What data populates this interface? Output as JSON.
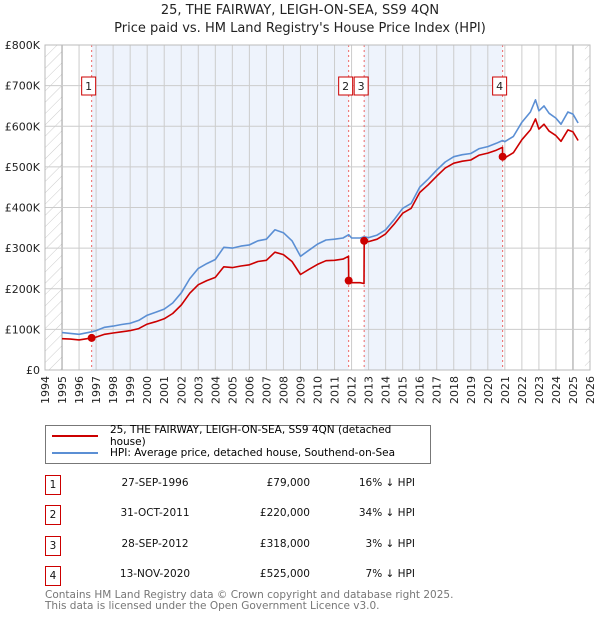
{
  "chart_data": {
    "type": "line",
    "title": "25, THE FAIRWAY, LEIGH-ON-SEA, SS9 4QN",
    "subtitle": "Price paid vs. HM Land Registry's House Price Index (HPI)",
    "xlim": [
      1994,
      2026
    ],
    "ylim": [
      0,
      800000
    ],
    "y_ticks": [
      {
        "value": 0,
        "label": "£0"
      },
      {
        "value": 100000,
        "label": "£100K"
      },
      {
        "value": 200000,
        "label": "£200K"
      },
      {
        "value": 300000,
        "label": "£300K"
      },
      {
        "value": 400000,
        "label": "£400K"
      },
      {
        "value": 500000,
        "label": "£500K"
      },
      {
        "value": 600000,
        "label": "£600K"
      },
      {
        "value": 700000,
        "label": "£700K"
      },
      {
        "value": 800000,
        "label": "£800K"
      }
    ],
    "x_ticks": [
      "1994",
      "1995",
      "1996",
      "1997",
      "1998",
      "1999",
      "2000",
      "2001",
      "2002",
      "2003",
      "2004",
      "2005",
      "2006",
      "2007",
      "2008",
      "2009",
      "2010",
      "2011",
      "2012",
      "2013",
      "2014",
      "2015",
      "2016",
      "2017",
      "2018",
      "2019",
      "2020",
      "2021",
      "2022",
      "2023",
      "2024",
      "2025",
      "2026"
    ],
    "grid": true,
    "colors": {
      "price": "#cc0000",
      "hpi": "#5b8fd4",
      "shade": "#eef3fc",
      "grid": "#cccccc"
    },
    "series": [
      {
        "name": "25, THE FAIRWAY, LEIGH-ON-SEA, SS9 4QN (detached house)",
        "color": "#cc0000",
        "x": [
          1995.0,
          1995.5,
          1996.0,
          1996.74,
          1997.0,
          1997.5,
          1998.0,
          1998.5,
          1999.0,
          1999.5,
          2000.0,
          2000.5,
          2001.0,
          2001.5,
          2002.0,
          2002.5,
          2003.0,
          2003.5,
          2004.0,
          2004.5,
          2005.0,
          2005.5,
          2006.0,
          2006.5,
          2007.0,
          2007.5,
          2008.0,
          2008.5,
          2009.0,
          2009.5,
          2010.0,
          2010.5,
          2011.0,
          2011.5,
          2011.82,
          2011.83,
          2012.0,
          2012.5,
          2012.73,
          2012.74,
          2013.0,
          2013.5,
          2014.0,
          2014.5,
          2015.0,
          2015.5,
          2016.0,
          2016.5,
          2017.0,
          2017.5,
          2018.0,
          2018.5,
          2019.0,
          2019.5,
          2020.0,
          2020.5,
          2020.86,
          2020.87,
          2021.0,
          2021.5,
          2022.0,
          2022.5,
          2022.8,
          2023.0,
          2023.3,
          2023.6,
          2024.0,
          2024.3,
          2024.7,
          2025.0,
          2025.3
        ],
        "values": [
          77,
          76,
          74,
          79,
          81,
          88,
          91,
          94,
          97,
          102,
          113,
          119,
          126,
          139,
          160,
          189,
          210,
          220,
          228,
          254,
          252,
          256,
          259,
          267,
          270,
          290,
          284,
          267,
          235,
          248,
          260,
          269,
          270,
          273,
          280,
          220,
          215,
          215,
          213,
          318,
          316,
          322,
          335,
          359,
          386,
          398,
          437,
          456,
          477,
          497,
          509,
          514,
          517,
          529,
          534,
          541,
          548,
          525,
          522,
          535,
          567,
          591,
          618,
          593,
          605,
          588,
          577,
          563,
          591,
          586,
          565
        ],
        "unit": "thousand GBP"
      },
      {
        "name": "HPI: Average price, detached house, Southend-on-Sea",
        "color": "#5b8fd4",
        "x": [
          1995.0,
          1995.5,
          1996.0,
          1996.74,
          1997.0,
          1997.5,
          1998.0,
          1998.5,
          1999.0,
          1999.5,
          2000.0,
          2000.5,
          2001.0,
          2001.5,
          2002.0,
          2002.5,
          2003.0,
          2003.5,
          2004.0,
          2004.5,
          2005.0,
          2005.5,
          2006.0,
          2006.5,
          2007.0,
          2007.5,
          2008.0,
          2008.5,
          2009.0,
          2009.5,
          2010.0,
          2010.5,
          2011.0,
          2011.5,
          2011.83,
          2012.0,
          2012.5,
          2012.74,
          2013.0,
          2013.5,
          2014.0,
          2014.5,
          2015.0,
          2015.5,
          2016.0,
          2016.5,
          2017.0,
          2017.5,
          2018.0,
          2018.5,
          2019.0,
          2019.5,
          2020.0,
          2020.5,
          2020.87,
          2021.0,
          2021.5,
          2022.0,
          2022.5,
          2022.8,
          2023.0,
          2023.3,
          2023.6,
          2024.0,
          2024.3,
          2024.7,
          2025.0,
          2025.3
        ],
        "values": [
          92,
          90,
          88,
          94,
          97,
          105,
          108,
          112,
          115,
          122,
          135,
          142,
          150,
          165,
          190,
          225,
          250,
          262,
          272,
          302,
          300,
          305,
          308,
          318,
          322,
          345,
          338,
          318,
          280,
          295,
          310,
          320,
          322,
          325,
          333,
          325,
          325,
          328,
          326,
          332,
          345,
          370,
          398,
          410,
          450,
          470,
          492,
          512,
          525,
          530,
          533,
          545,
          550,
          558,
          565,
          562,
          575,
          610,
          635,
          665,
          638,
          650,
          632,
          620,
          605,
          635,
          630,
          608
        ],
        "unit": "thousand GBP"
      }
    ],
    "data_range": [
      1995.0,
      2025.7
    ],
    "legend": {
      "placement": "below",
      "entries": [
        "25, THE FAIRWAY, LEIGH-ON-SEA, SS9 4QN (detached house)",
        "HPI: Average price, detached house, Southend-on-Sea"
      ]
    },
    "sales": [
      {
        "num": "1",
        "year": 1996.74,
        "value": 79,
        "date": "27-SEP-1996",
        "price": "£79,000",
        "hpi": "16% ↓ HPI"
      },
      {
        "num": "2",
        "year": 2011.83,
        "value": 220,
        "date": "31-OCT-2011",
        "price": "£220,000",
        "hpi": "34% ↓ HPI"
      },
      {
        "num": "3",
        "year": 2012.74,
        "value": 318,
        "date": "28-SEP-2012",
        "price": "£318,000",
        "hpi": "3% ↓ HPI"
      },
      {
        "num": "4",
        "year": 2020.87,
        "value": 525,
        "date": "13-NOV-2020",
        "price": "£525,000",
        "hpi": "7% ↓ HPI"
      }
    ]
  },
  "footer": {
    "line1": "Contains HM Land Registry data © Crown copyright and database right 2025.",
    "line2": "This data is licensed under the Open Government Licence v3.0."
  }
}
